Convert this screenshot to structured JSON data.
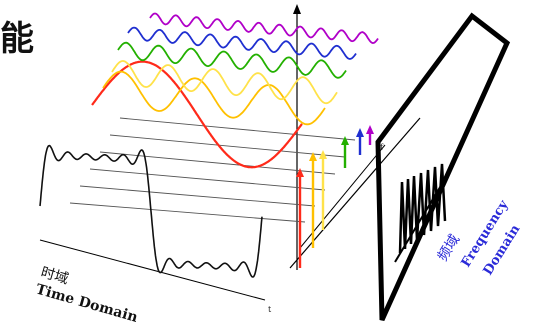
{
  "corner_glyph": "能",
  "time_domain": {
    "label_cn": "时域",
    "label_en": "Time Domain"
  },
  "frequency_domain": {
    "label_cn": "频域",
    "label_en_1": "Frequency",
    "label_en_2": "Domain"
  },
  "axis_labels": {
    "freq_axis_tick": "f",
    "time_axis_tick": "t"
  },
  "harmonics": [
    {
      "name": "fundamental",
      "color": "#ff2a1a"
    },
    {
      "name": "harmonic-3",
      "color": "#ffc000"
    },
    {
      "name": "harmonic-5",
      "color": "#ffe24a"
    },
    {
      "name": "harmonic-7",
      "color": "#23b000"
    },
    {
      "name": "harmonic-9",
      "color": "#1f2fd0"
    },
    {
      "name": "harmonic-11",
      "color": "#b000c8"
    }
  ]
}
